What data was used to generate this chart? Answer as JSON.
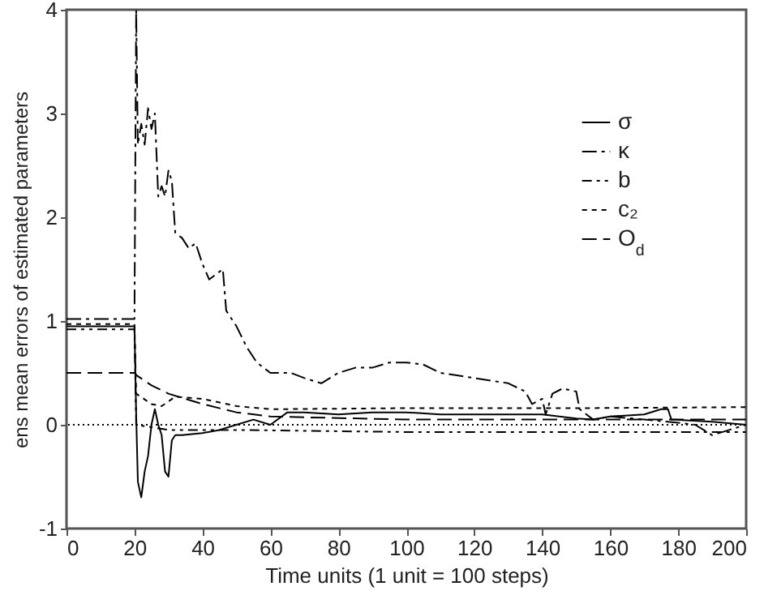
{
  "chart_data": {
    "type": "line",
    "xlabel": "Time units (1 unit = 100 steps)",
    "ylabel": "ens mean errors of estimated parameters",
    "xlim": [
      0,
      200
    ],
    "ylim": [
      -1,
      4
    ],
    "xticks": [
      0,
      20,
      40,
      60,
      80,
      100,
      120,
      140,
      160,
      180,
      200
    ],
    "yticks": [
      -1,
      0,
      1,
      2,
      3,
      4
    ],
    "grid": false,
    "legend": "top right",
    "marker": "none",
    "ref_lines": [
      {
        "axis": "y",
        "value": 0,
        "line_style": "dotted",
        "color": "#000000"
      }
    ],
    "series": [
      {
        "name": "σ",
        "color": "#000000",
        "line_style": "solid",
        "x": [
          0,
          20,
          20.5,
          21,
          22,
          23,
          24,
          25,
          26,
          27,
          28,
          29,
          30,
          31,
          32,
          34,
          40,
          45,
          50,
          55,
          60,
          65,
          70,
          80,
          90,
          100,
          110,
          120,
          130,
          140,
          150,
          155,
          160,
          170,
          175,
          177,
          178,
          190,
          200
        ],
        "values": [
          0.95,
          0.95,
          0.1,
          -0.55,
          -0.7,
          -0.45,
          -0.3,
          0.0,
          0.15,
          0.0,
          -0.1,
          -0.45,
          -0.5,
          -0.15,
          -0.1,
          -0.1,
          -0.08,
          -0.05,
          0.0,
          0.05,
          0.0,
          0.12,
          0.12,
          0.1,
          0.12,
          0.12,
          0.1,
          0.1,
          0.1,
          0.1,
          0.06,
          0.05,
          0.08,
          0.1,
          0.15,
          0.15,
          0.05,
          0.03,
          0.0
        ]
      },
      {
        "name": "κ",
        "color": "#000000",
        "line_style": "dashdot",
        "x": [
          0,
          20,
          20.5,
          21,
          22,
          23,
          24,
          25,
          26,
          27,
          28,
          29,
          30,
          31,
          32,
          34,
          36,
          38,
          40,
          42,
          44,
          46,
          47,
          50,
          53,
          56,
          60,
          62,
          66,
          70,
          75,
          80,
          85,
          90,
          95,
          100,
          105,
          110,
          120,
          130,
          135,
          137,
          140,
          141,
          143,
          146,
          150,
          151,
          153,
          155,
          160,
          170,
          180,
          185,
          190,
          195,
          200
        ],
        "values": [
          1.02,
          1.02,
          4.0,
          2.7,
          2.9,
          2.7,
          3.05,
          2.85,
          3.0,
          2.2,
          2.3,
          2.2,
          2.45,
          2.35,
          1.85,
          1.8,
          1.7,
          1.75,
          1.55,
          1.4,
          1.45,
          1.5,
          1.1,
          0.95,
          0.75,
          0.6,
          0.5,
          0.5,
          0.5,
          0.45,
          0.4,
          0.5,
          0.55,
          0.55,
          0.6,
          0.6,
          0.58,
          0.5,
          0.45,
          0.4,
          0.32,
          0.2,
          0.25,
          0.1,
          0.3,
          0.35,
          0.32,
          0.15,
          0.1,
          0.05,
          0.08,
          0.05,
          0.02,
          0.0,
          -0.1,
          -0.05,
          0.0
        ]
      },
      {
        "name": "b",
        "color": "#000000",
        "line_style": "dashdot",
        "x": [
          0,
          20,
          20.5,
          30,
          50,
          100,
          150,
          200
        ],
        "values": [
          0.92,
          0.92,
          0.0,
          -0.05,
          -0.05,
          -0.07,
          -0.07,
          -0.07
        ]
      },
      {
        "name": "c₂",
        "color": "#000000",
        "line_style": "dashed",
        "x": [
          0,
          20,
          20.5,
          25,
          28,
          32,
          40,
          50,
          60,
          100,
          150,
          200
        ],
        "values": [
          0.97,
          0.97,
          0.3,
          0.2,
          0.18,
          0.27,
          0.25,
          0.18,
          0.15,
          0.16,
          0.16,
          0.17
        ]
      },
      {
        "name": "O$_{d}$",
        "color": "#000000",
        "line_style": "dashed",
        "x": [
          0,
          20,
          20.5,
          25,
          30,
          40,
          50,
          60,
          100,
          150,
          200
        ],
        "values": [
          0.5,
          0.5,
          0.48,
          0.38,
          0.3,
          0.2,
          0.12,
          0.08,
          0.05,
          0.05,
          0.05
        ]
      }
    ]
  }
}
